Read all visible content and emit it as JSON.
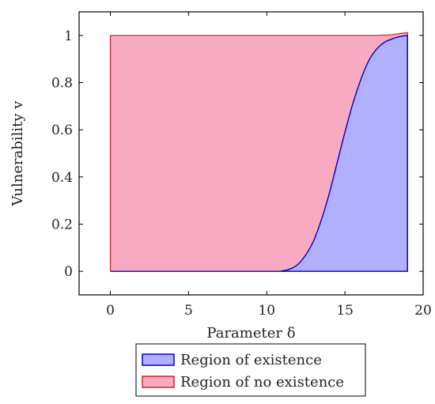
{
  "chart_data": {
    "type": "area",
    "xlabel": "Parameter δ",
    "ylabel": "Vulnerability v",
    "xlim": [
      -2,
      20
    ],
    "ylim": [
      -0.1,
      1.1
    ],
    "xticks": [
      0,
      5,
      10,
      15,
      20
    ],
    "yticks": [
      0,
      0.2,
      0.4,
      0.6,
      0.8,
      1
    ],
    "grid": false,
    "legend_position": "bottom-center",
    "series": [
      {
        "name": "Region of existence",
        "color": "#0000cc",
        "fill": "#b0b0ff",
        "x": [
          0,
          10,
          11,
          11.5,
          12,
          12.5,
          13,
          13.5,
          14,
          14.5,
          15,
          15.5,
          16,
          16.5,
          17,
          17.5,
          18,
          18.5,
          19
        ],
        "upper": [
          0,
          0,
          0.002,
          0.01,
          0.03,
          0.07,
          0.13,
          0.22,
          0.33,
          0.46,
          0.59,
          0.71,
          0.81,
          0.89,
          0.94,
          0.97,
          0.985,
          0.995,
          1.0
        ],
        "lower": 0
      },
      {
        "name": "Region of no existence",
        "color": "#cc2222",
        "fill": "#f9aac3",
        "x": [
          0,
          17,
          18,
          18.5,
          19
        ],
        "upper": [
          1,
          1,
          1.003,
          1.008,
          1.012
        ]
      }
    ],
    "legend": [
      {
        "label": "Region of existence",
        "color": "#0000cc",
        "fill": "#b0b0ff"
      },
      {
        "label": "Region of no existence",
        "color": "#cc2222",
        "fill": "#f9aac3"
      }
    ]
  }
}
